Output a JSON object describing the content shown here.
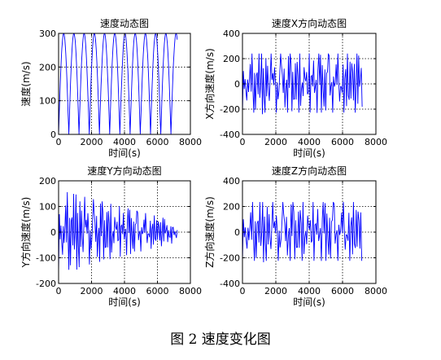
{
  "figure_caption": "图 2  速度变化图",
  "chart_data": [
    {
      "type": "line",
      "title": "速度动态图",
      "xlabel": "时间(s)",
      "ylabel": "速度(m/s)",
      "xlim": [
        0,
        8000
      ],
      "ylim": [
        0,
        300
      ],
      "xticks": [
        0,
        2000,
        4000,
        6000,
        8000
      ],
      "yticks": [
        0,
        100,
        200,
        300
      ],
      "grid": "dotted",
      "color": "#0000ff",
      "signal": {
        "kind": "rectified_sine",
        "x_end": 7200,
        "period": 620,
        "amplitude": 300,
        "offset": 0,
        "decay": 0
      },
      "series": [
        {
          "x": [
            0,
            155,
            310,
            465,
            620,
            775,
            930,
            1085,
            1240,
            1395,
            1550,
            1705,
            1860,
            2015,
            2170,
            2325,
            2480,
            2635,
            2790,
            2945,
            3100,
            3255,
            3410,
            3565,
            3720,
            3875,
            4030,
            4185,
            4340,
            4495,
            4650,
            4805,
            4960,
            5115,
            5270,
            5425,
            5580,
            5735,
            5890,
            6045,
            6200,
            6355,
            6510,
            6665,
            6820,
            6975,
            7130
          ],
          "values": [
            15,
            212,
            300,
            212,
            5,
            212,
            300,
            212,
            5,
            212,
            300,
            212,
            5,
            212,
            300,
            212,
            5,
            212,
            300,
            212,
            5,
            212,
            300,
            212,
            5,
            212,
            300,
            212,
            5,
            212,
            300,
            212,
            5,
            212,
            300,
            212,
            5,
            212,
            300,
            212,
            5,
            212,
            300,
            212,
            5,
            212,
            60
          ]
        }
      ]
    },
    {
      "type": "line",
      "title": "速度X方向动态图",
      "xlabel": "时间(s)",
      "ylabel": "X方向速度(m/s)",
      "xlim": [
        0,
        8000
      ],
      "ylim": [
        -400,
        400
      ],
      "xticks": [
        0,
        2000,
        4000,
        6000,
        8000
      ],
      "yticks": [
        -400,
        -200,
        0,
        200,
        400
      ],
      "grid": "dotted",
      "color": "#0000ff",
      "signal": {
        "kind": "oscillation",
        "x_end": 7200,
        "step": 52,
        "amplitude": 240,
        "offset": 0,
        "decay": 0
      },
      "series": [
        {
          "x": [
            0,
            600,
            1200,
            1800,
            2400,
            3000,
            3600,
            4200,
            4800,
            5400,
            6000,
            6600,
            7200
          ],
          "values": [
            0,
            200,
            -200,
            230,
            -220,
            240,
            -210,
            220,
            -230,
            240,
            -200,
            230,
            0
          ]
        }
      ]
    },
    {
      "type": "line",
      "title": "速度Y方向动态图",
      "xlabel": "时间(s)",
      "ylabel": "Y方向速度(m/s)",
      "xlim": [
        0,
        8000
      ],
      "ylim": [
        -200,
        200
      ],
      "xticks": [
        0,
        2000,
        4000,
        6000,
        8000
      ],
      "yticks": [
        -200,
        -100,
        0,
        100,
        200
      ],
      "grid": "dotted",
      "color": "#0000ff",
      "signal": {
        "kind": "oscillation",
        "x_end": 7200,
        "step": 48,
        "amplitude": 165,
        "offset": 0,
        "decay": 0.75
      },
      "series": [
        {
          "x": [
            0,
            700,
            1400,
            2100,
            2800,
            3500,
            4200,
            4900,
            5600,
            6300,
            7000
          ],
          "values": [
            0,
            160,
            -150,
            130,
            -120,
            100,
            -90,
            70,
            -60,
            50,
            10
          ]
        }
      ]
    },
    {
      "type": "line",
      "title": "速度Z方向动态图",
      "xlabel": "时间(s)",
      "ylabel": "Z方向速度(m/s)",
      "xlim": [
        0,
        8000
      ],
      "ylim": [
        -400,
        400
      ],
      "xticks": [
        0,
        2000,
        4000,
        6000,
        8000
      ],
      "yticks": [
        -400,
        -200,
        0,
        200,
        400
      ],
      "grid": "dotted",
      "color": "#0000ff",
      "signal": {
        "kind": "oscillation",
        "x_end": 7200,
        "step": 55,
        "amplitude": 235,
        "offset": 0,
        "decay": 0
      },
      "series": [
        {
          "x": [
            0,
            600,
            1200,
            1800,
            2400,
            3000,
            3600,
            4200,
            4800,
            5400,
            6000,
            6600,
            7200
          ],
          "values": [
            0,
            220,
            -210,
            230,
            -200,
            240,
            -230,
            210,
            -220,
            230,
            -210,
            220,
            0
          ]
        }
      ]
    }
  ]
}
